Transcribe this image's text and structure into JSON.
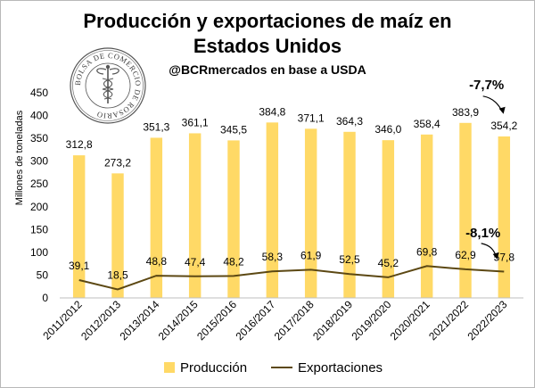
{
  "chart_data": {
    "type": "bar",
    "title_line1": "Producción y exportaciones de maíz en",
    "title_line2": "Estados Unidos",
    "subtitle": "@BCRmercados en base a USDA",
    "ylabel": "Millones de toneladas",
    "ylim": [
      0,
      450
    ],
    "yticks": [
      0,
      50,
      100,
      150,
      200,
      250,
      300,
      350,
      400,
      450
    ],
    "categories": [
      "2011/2012",
      "2012/2013",
      "2013/2014",
      "2014/2015",
      "2015/2016",
      "2016/2017",
      "2017/2018",
      "2018/2019",
      "2019/2020",
      "2020/2021",
      "2021/2022",
      "2022/2023"
    ],
    "series": [
      {
        "name": "Producción",
        "kind": "bar",
        "color": "#FFD966",
        "values": [
          312.8,
          273.2,
          351.3,
          361.1,
          345.5,
          384.8,
          371.1,
          364.3,
          346.0,
          358.4,
          383.9,
          354.2
        ],
        "labels": [
          "312,8",
          "273,2",
          "351,3",
          "361,1",
          "345,5",
          "384,8",
          "371,1",
          "364,3",
          "346,0",
          "358,4",
          "383,9",
          "354,2"
        ]
      },
      {
        "name": "Exportaciones",
        "kind": "line",
        "color": "#5C4813",
        "values": [
          39.1,
          18.5,
          48.8,
          47.4,
          48.2,
          58.3,
          61.9,
          52.5,
          45.2,
          69.8,
          62.9,
          57.8
        ],
        "labels": [
          "39,1",
          "18,5",
          "48,8",
          "47,4",
          "48,2",
          "58,3",
          "61,9",
          "52,5",
          "45,2",
          "69,8",
          "62,9",
          "57,8"
        ]
      }
    ],
    "annotations": [
      {
        "text": "-7,7%",
        "series": "Producción"
      },
      {
        "text": "-8,1%",
        "series": "Exportaciones"
      }
    ],
    "legend": {
      "position": "bottom"
    },
    "grid": false
  },
  "logo": {
    "text": "BOLSA DE COMERCIO DE ROSARIO",
    "color": "#4a4a4a"
  }
}
